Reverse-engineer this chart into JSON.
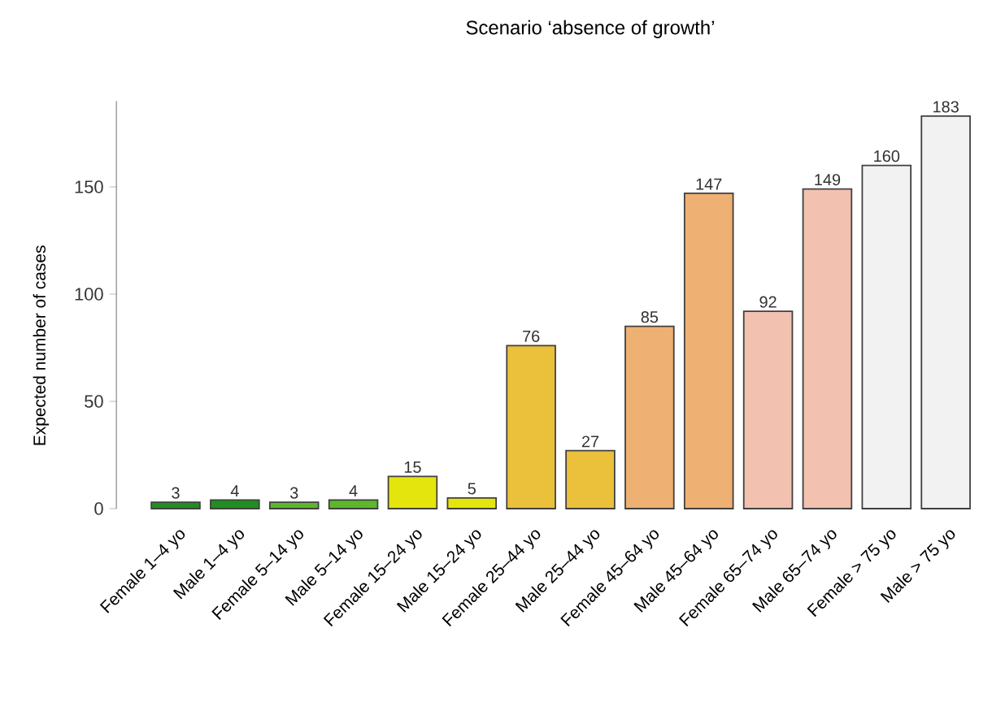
{
  "chart_data": {
    "type": "bar",
    "title": "Scenario ‘absence of growth’",
    "ylabel": "Expected number of cases",
    "categories": [
      "Female 1–4 yo",
      "Male 1–4 yo",
      "Female 5–14 yo",
      "Male 5–14 yo",
      "Female 15–24 yo",
      "Male 15–24 yo",
      "Female 25–44 yo",
      "Male 25–44 yo",
      "Female 45–64 yo",
      "Male 45–64 yo",
      "Female 65–74 yo",
      "Male 65–74 yo",
      "Female > 75 yo",
      "Male > 75 yo"
    ],
    "values": [
      3,
      4,
      3,
      4,
      15,
      5,
      76,
      27,
      85,
      147,
      92,
      149,
      160,
      183
    ],
    "colors": [
      "#1f8f1f",
      "#1f8f1f",
      "#5cb82a",
      "#5cb82a",
      "#e5e50e",
      "#e5e50e",
      "#ebc03b",
      "#ebc03b",
      "#eeb073",
      "#eeb073",
      "#f2c1b0",
      "#f2c1b0",
      "#f2f2f2",
      "#f2f2f2"
    ],
    "ylim": [
      0,
      190
    ],
    "yticks": [
      0,
      50,
      100,
      150
    ],
    "data_labels": true
  }
}
